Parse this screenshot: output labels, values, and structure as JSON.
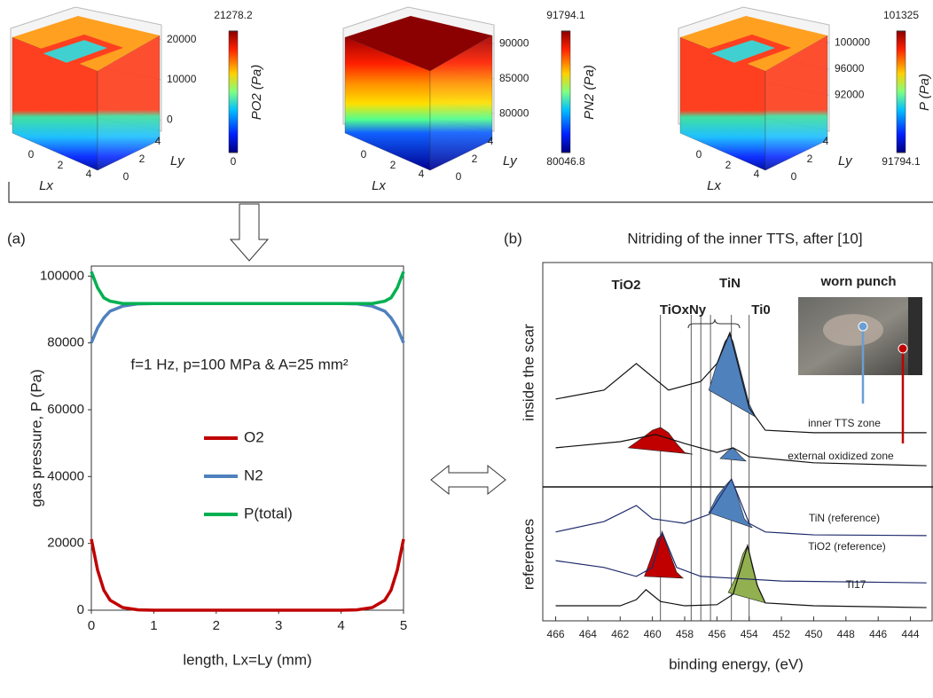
{
  "chart_data": [
    {
      "type": "surface",
      "colorbar_label": "PO2 (Pa)",
      "clim": [
        0,
        21278.2
      ],
      "cticks": [
        21278.2,
        0
      ],
      "zlim": [
        -1000,
        25000
      ],
      "zticks": [
        0,
        10000,
        20000
      ],
      "xticks": [
        0,
        2,
        4
      ],
      "yticks": [
        0,
        2,
        4
      ],
      "xlabel": "Lx",
      "ylabel": "Ly"
    },
    {
      "type": "surface",
      "colorbar_label": "PN2 (Pa)",
      "clim": [
        80046.8,
        91794.1
      ],
      "cticks": [
        91794.1,
        80046.8
      ],
      "zlim": [
        78500,
        93500
      ],
      "zticks": [
        80000,
        85000,
        90000
      ],
      "xticks": [
        0,
        2,
        4
      ],
      "yticks": [
        0,
        2,
        4
      ],
      "xlabel": "Lx",
      "ylabel": "Ly"
    },
    {
      "type": "surface",
      "colorbar_label": "P (Pa)",
      "clim": [
        91794.1,
        101325
      ],
      "cticks": [
        101325,
        91794.1
      ],
      "zlim": [
        87600,
        103600
      ],
      "zticks": [
        92000,
        96000,
        100000
      ],
      "xticks": [
        0,
        2,
        4
      ],
      "yticks": [
        0,
        2,
        4
      ],
      "xlabel": "Lx",
      "ylabel": "Ly"
    },
    {
      "type": "line",
      "panel_label": "(a)",
      "annotation": "f=1 Hz, p=100 MPa & A=25 mm²",
      "xlabel": "length, Lx=Ly  (mm)",
      "ylabel": "gas pressure, P (Pa)",
      "xlim": [
        0,
        5
      ],
      "ylim": [
        0,
        103000
      ],
      "xticks": [
        0,
        1,
        2,
        3,
        4,
        5
      ],
      "yticks": [
        0,
        20000,
        40000,
        60000,
        80000,
        100000
      ],
      "x": [
        0,
        0.1,
        0.2,
        0.3,
        0.5,
        0.75,
        1,
        2,
        3,
        4,
        4.25,
        4.5,
        4.7,
        4.8,
        4.9,
        5
      ],
      "series": [
        {
          "name": "O2",
          "color": "#c00000",
          "values": [
            21278,
            12000,
            6000,
            3000,
            800,
            100,
            0,
            0,
            0,
            0,
            100,
            800,
            3000,
            6000,
            12000,
            21278
          ]
        },
        {
          "name": "N2",
          "color": "#4f81bd",
          "values": [
            80047,
            84500,
            87500,
            89500,
            91000,
            91700,
            91794,
            91794,
            91794,
            91794,
            91700,
            91000,
            89500,
            87500,
            84500,
            80047
          ]
        },
        {
          "name": "P(total)",
          "color": "#00b050",
          "values": [
            101325,
            96500,
            93500,
            92500,
            91800,
            91794,
            91794,
            91794,
            91794,
            91794,
            91794,
            91800,
            92500,
            93500,
            96500,
            101325
          ]
        }
      ]
    },
    {
      "type": "spectra",
      "panel_label": "(b)",
      "title": "Nitriding  of the inner TTS, after [10]",
      "xlabel": "binding energy, (eV)",
      "group_labels": [
        "inside the scar",
        "references"
      ],
      "xlim": [
        466.8,
        442.6
      ],
      "ylim": [
        0,
        100
      ],
      "xticks": [
        466,
        464,
        462,
        460,
        458,
        456,
        454,
        452,
        450,
        448,
        446,
        444
      ],
      "peak_labels": [
        "TiO2",
        "TiOxNy",
        "TiN",
        "Ti0"
      ],
      "inset_title": "worn punch",
      "reference_lines": [
        459.5,
        457.6,
        457,
        456.4,
        455.1,
        454
      ],
      "series": [
        {
          "label": "inner TTS zone",
          "color": "#111111",
          "x": [
            466,
            463,
            461,
            459,
            457,
            456,
            455.2,
            454,
            453,
            450,
            443
          ],
          "values": [
            61.9,
            64.4,
            71.8,
            64.4,
            66.8,
            71.8,
            80.4,
            59.4,
            53.2,
            52.5,
            52.5
          ]
        },
        {
          "label": "external oxidized zone",
          "color": "#111111",
          "x": [
            466,
            462,
            459.8,
            458,
            456,
            455,
            454,
            450,
            443
          ],
          "values": [
            48.3,
            50.0,
            52.0,
            49.5,
            47.0,
            48.3,
            45.8,
            44.1,
            43.3
          ]
        },
        {
          "label": "TiN (reference)",
          "color": "#1f2a6b",
          "x": [
            466,
            463,
            461,
            460,
            458,
            456.5,
            455.1,
            454,
            453,
            450,
            443
          ],
          "values": [
            24.8,
            27.7,
            32.2,
            28.5,
            27.2,
            29.7,
            39.6,
            27.2,
            24.8,
            24.0,
            23.8
          ]
        },
        {
          "label": "TiO2 (reference)",
          "color": "#1f2a6b",
          "x": [
            466,
            463,
            461,
            460,
            459.4,
            458.5,
            457,
            455,
            452,
            443
          ],
          "values": [
            16.8,
            14.9,
            12.4,
            14.9,
            24.8,
            14.9,
            12.4,
            11.9,
            11.1,
            10.6
          ]
        },
        {
          "label": "Ti17",
          "color": "#111111",
          "x": [
            466,
            462,
            461,
            460.4,
            459.5,
            458,
            456,
            455,
            454.1,
            453.5,
            453,
            450,
            443
          ],
          "values": [
            4.2,
            4.2,
            5.9,
            8.7,
            5.4,
            4.2,
            4.5,
            7.4,
            21.0,
            9.9,
            5.0,
            4.2,
            3.7
          ]
        }
      ],
      "components": [
        {
          "color": "#4f81bd",
          "x": [
            456.5,
            456,
            455.5,
            455.2,
            455,
            454.5,
            454,
            453.6
          ],
          "values": [
            64.4,
            71.8,
            78.0,
            79.7,
            78.0,
            69.3,
            60.6,
            56.9
          ]
        },
        {
          "color": "#c00000",
          "x": [
            461.5,
            460.5,
            460,
            459.5,
            459,
            458.5,
            458,
            457.5
          ],
          "values": [
            48.3,
            51.5,
            53.2,
            54.0,
            52.5,
            49.5,
            47.0,
            46.5
          ]
        },
        {
          "color": "#4f81bd",
          "x": [
            455.8,
            455.3,
            455,
            454.5,
            454.2
          ],
          "values": [
            45.3,
            47.5,
            48.3,
            45.8,
            44.6
          ]
        },
        {
          "color": "#4f81bd",
          "x": [
            456.5,
            456,
            455.5,
            455.1,
            454.8,
            454.3,
            453.8
          ],
          "values": [
            30.2,
            34.7,
            37.6,
            39.6,
            35.9,
            28.5,
            26.0
          ]
        },
        {
          "color": "#c00000",
          "x": [
            460.5,
            460,
            459.7,
            459.4,
            459,
            458.5,
            458.1
          ],
          "values": [
            12.4,
            18.6,
            22.8,
            24.3,
            19.8,
            13.6,
            11.9
          ]
        },
        {
          "color": "#92b050",
          "x": [
            455.3,
            454.8,
            454.4,
            454.1,
            453.8,
            453.4,
            453
          ],
          "values": [
            7.9,
            12.4,
            18.6,
            21.0,
            14.9,
            8.7,
            5.0
          ]
        }
      ]
    }
  ]
}
